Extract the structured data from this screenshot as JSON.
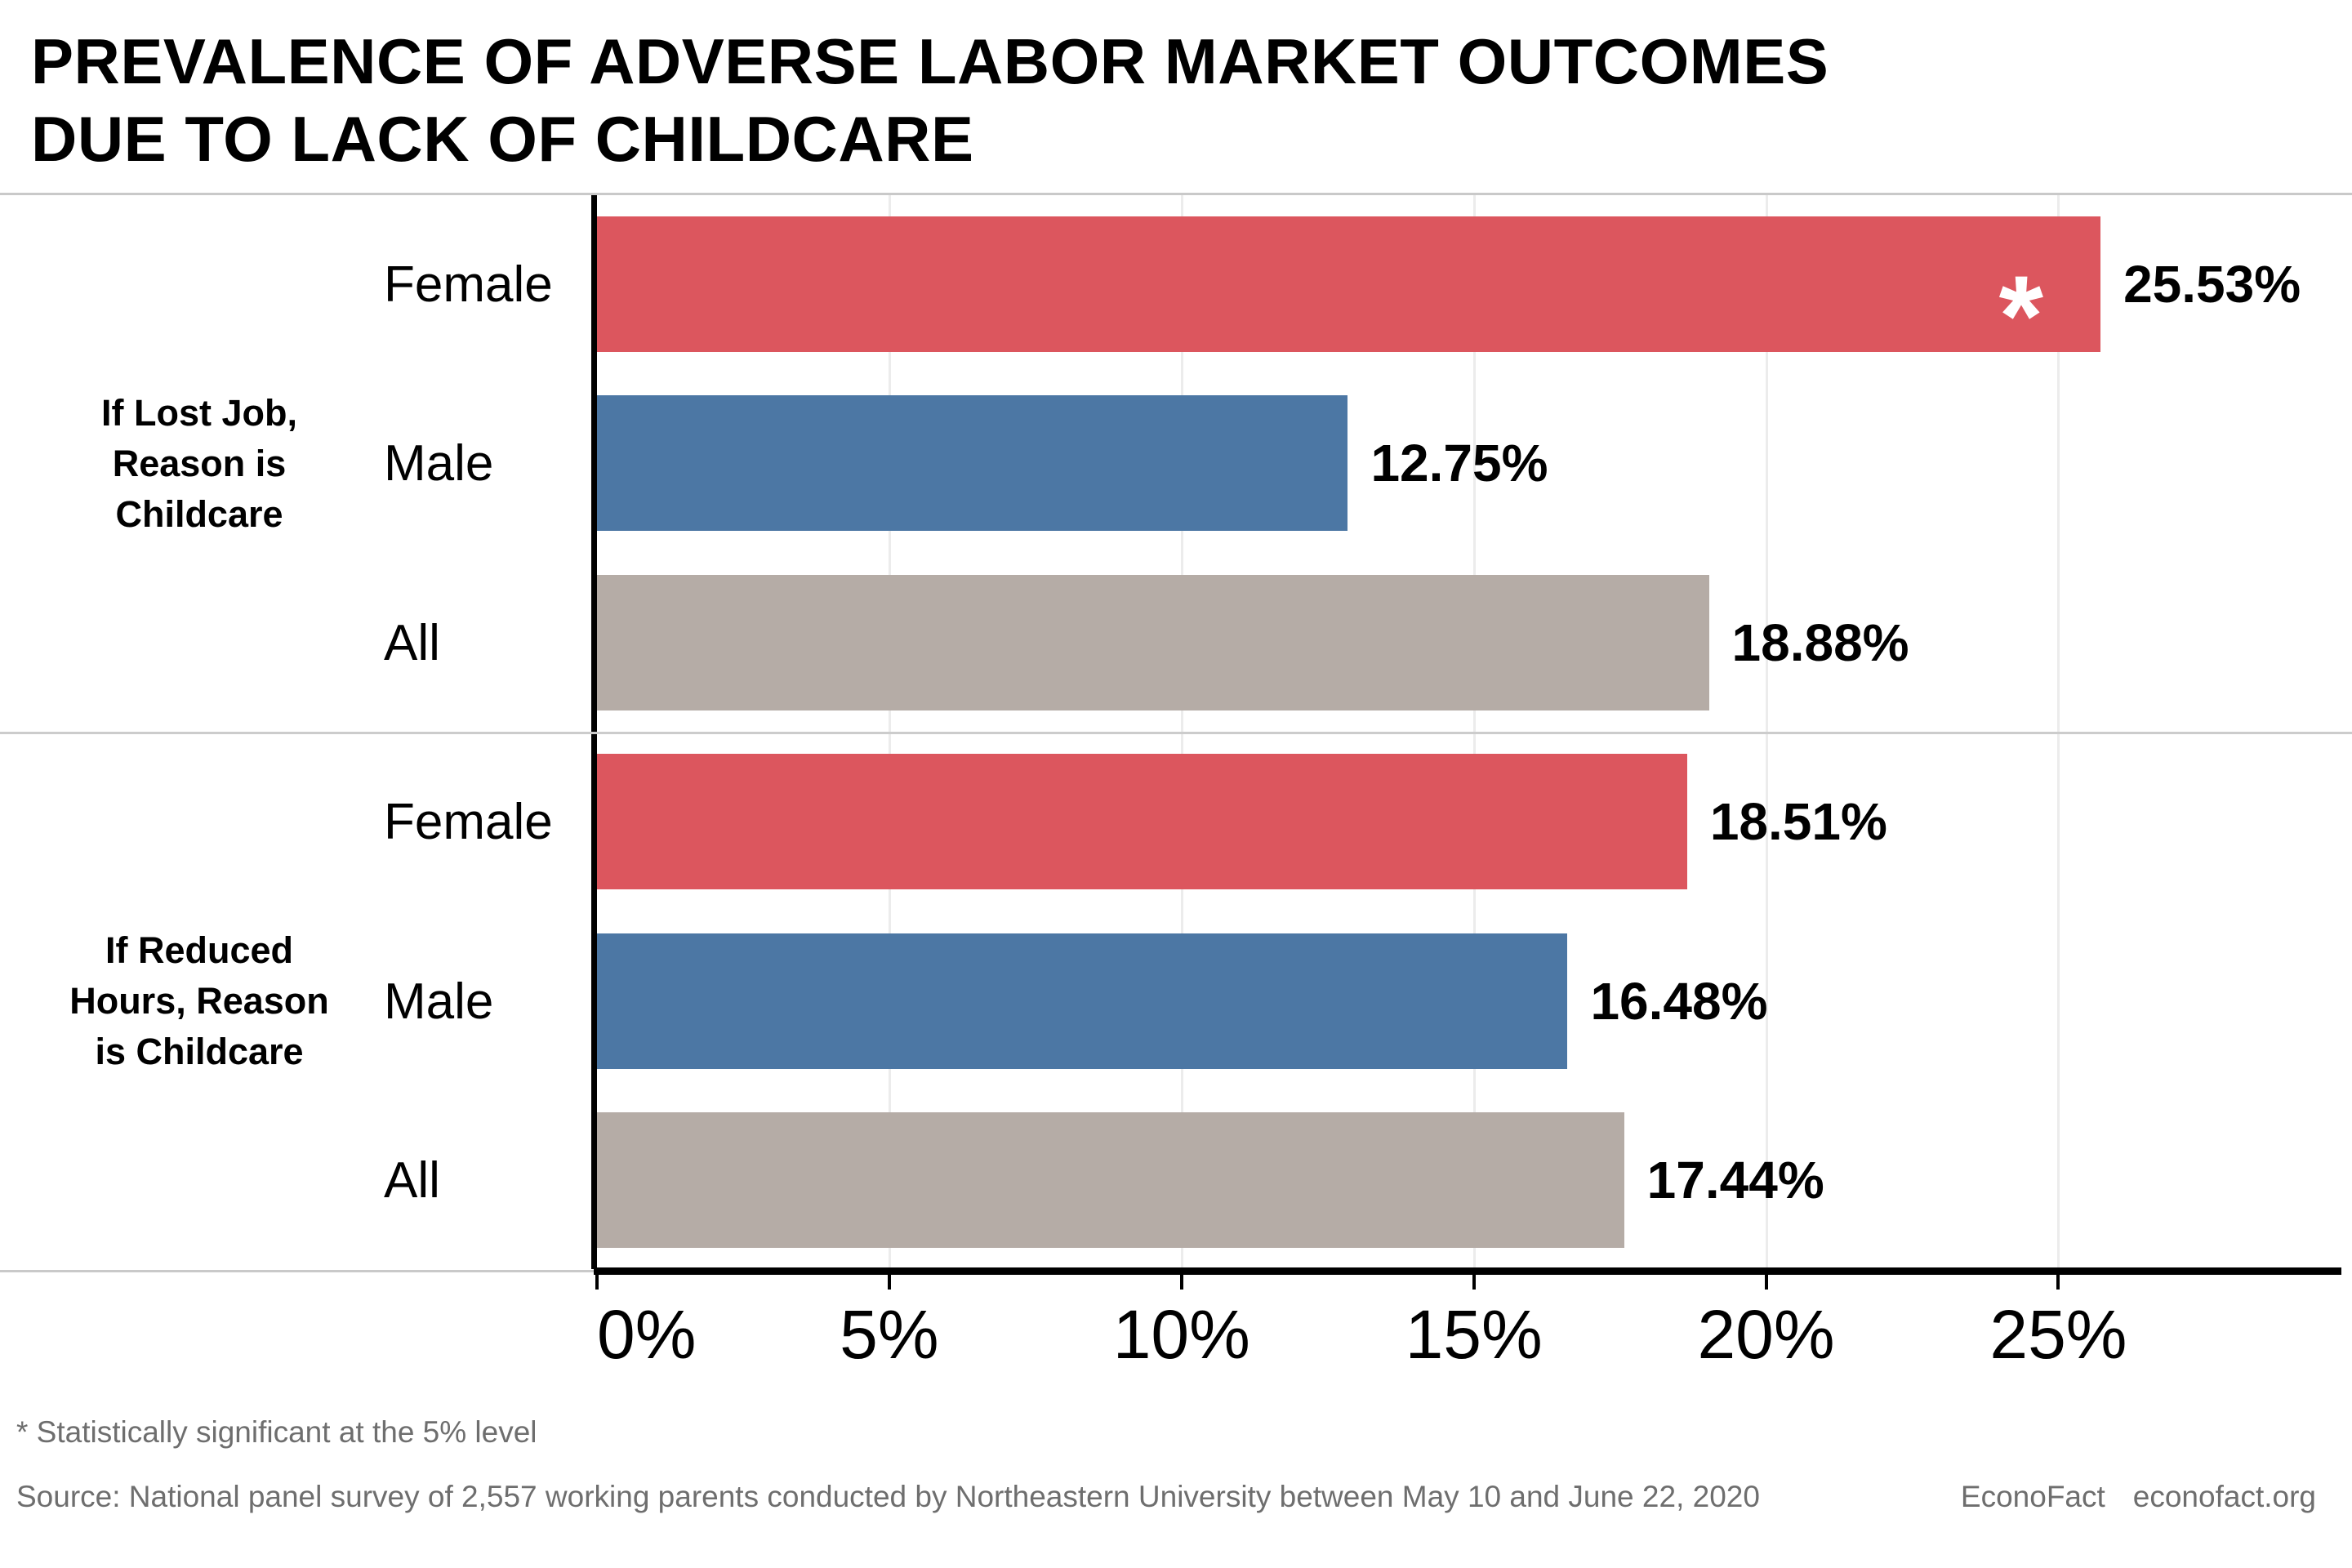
{
  "title_lines": [
    "PREVALENCE OF ADVERSE LABOR MARKET OUTCOMES",
    "DUE TO LACK OF CHILDCARE"
  ],
  "chart_data": {
    "type": "bar",
    "orientation": "horizontal",
    "title": "Prevalence of adverse labor market outcomes due to lack of childcare",
    "xlabel": "",
    "ylabel": "",
    "xlim": [
      0,
      29.8
    ],
    "grid": "vertical-light",
    "legend": "none",
    "significance_marker": "*",
    "group_labels": [
      {
        "lines": [
          "If Lost Job,",
          "Reason is",
          "Childcare"
        ]
      },
      {
        "lines": [
          "If Reduced",
          "Hours, Reason",
          "is Childcare"
        ]
      }
    ],
    "categories": [
      "Female",
      "Male",
      "All",
      "Female",
      "Male",
      "All"
    ],
    "values": [
      25.53,
      12.75,
      18.88,
      18.51,
      16.48,
      17.44
    ],
    "rows": [
      {
        "group": "If Lost Job, Reason is Childcare",
        "label": "Female",
        "value": 25.53,
        "display": "25.53%",
        "color_key": "female",
        "starred": true
      },
      {
        "group": "If Lost Job, Reason is Childcare",
        "label": "Male",
        "value": 12.75,
        "display": "12.75%",
        "color_key": "male",
        "starred": false
      },
      {
        "group": "If Lost Job, Reason is Childcare",
        "label": "All",
        "value": 18.88,
        "display": "18.88%",
        "color_key": "all",
        "starred": false
      },
      {
        "group": "If Reduced Hours, Reason is Childcare",
        "label": "Female",
        "value": 18.51,
        "display": "18.51%",
        "color_key": "female",
        "starred": false
      },
      {
        "group": "If Reduced Hours, Reason is Childcare",
        "label": "Male",
        "value": 16.48,
        "display": "16.48%",
        "color_key": "male",
        "starred": false
      },
      {
        "group": "If Reduced Hours, Reason is Childcare",
        "label": "All",
        "value": 17.44,
        "display": "17.44%",
        "color_key": "all",
        "starred": false
      }
    ],
    "tick_values": [
      0,
      5,
      10,
      15,
      20,
      25
    ],
    "tick_labels": [
      "0%",
      "5%",
      "10%",
      "15%",
      "20%",
      "25%"
    ],
    "colors": {
      "female": "#dc565e",
      "male": "#4c77a4",
      "all": "#b5aca6",
      "axis": "#000000",
      "gridline": "#ececec",
      "separator": "#c9c9c9",
      "footnote_text": "#6e6e6e"
    }
  },
  "footnotes": {
    "significance": "* Statistically significant at the 5% level",
    "source": "Source: National panel survey of 2,557 working parents conducted by Northeastern University between May 10 and June 22, 2020",
    "brand": "EconoFact",
    "brand_url": "econofact.org"
  }
}
